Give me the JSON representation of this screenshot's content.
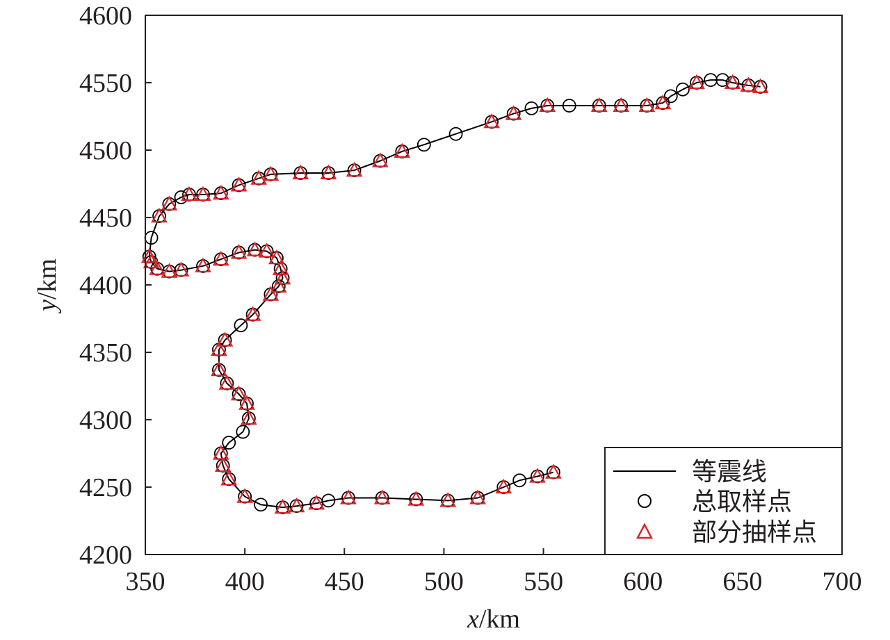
{
  "chart_data": {
    "type": "line",
    "xlabel_var": "x",
    "xlabel_unit": "/km",
    "ylabel_var": "y",
    "ylabel_unit": "/km",
    "xlim": [
      350,
      700
    ],
    "ylim": [
      4200,
      4600
    ],
    "xticks": [
      350,
      400,
      450,
      500,
      550,
      600,
      650,
      700
    ],
    "yticks": [
      4200,
      4250,
      4300,
      4350,
      4400,
      4450,
      4500,
      4550,
      4600
    ],
    "legend_position": "bottom-right",
    "series": [
      {
        "name": "等震线",
        "style": "line",
        "color": "#000000",
        "points": [
          [
            555,
            4261
          ],
          [
            547,
            4258
          ],
          [
            538,
            4255
          ],
          [
            530,
            4250
          ],
          [
            517,
            4242
          ],
          [
            502,
            4240
          ],
          [
            486,
            4241
          ],
          [
            469,
            4242
          ],
          [
            452,
            4242
          ],
          [
            442,
            4240
          ],
          [
            436,
            4238
          ],
          [
            426,
            4236
          ],
          [
            419,
            4235
          ],
          [
            408,
            4237
          ],
          [
            400,
            4243
          ],
          [
            392,
            4256
          ],
          [
            389,
            4266
          ],
          [
            388,
            4275
          ],
          [
            392,
            4283
          ],
          [
            399,
            4291
          ],
          [
            402,
            4301
          ],
          [
            401,
            4312
          ],
          [
            397,
            4319
          ],
          [
            391,
            4327
          ],
          [
            387,
            4337
          ],
          [
            387,
            4352
          ],
          [
            390,
            4359
          ],
          [
            398,
            4370
          ],
          [
            404,
            4378
          ],
          [
            413,
            4393
          ],
          [
            417,
            4399
          ],
          [
            419,
            4405
          ],
          [
            418,
            4412
          ],
          [
            416,
            4420
          ],
          [
            411,
            4425
          ],
          [
            405,
            4426
          ],
          [
            397,
            4424
          ],
          [
            388,
            4419
          ],
          [
            379,
            4414
          ],
          [
            368,
            4411
          ],
          [
            362,
            4410
          ],
          [
            356,
            4412
          ],
          [
            353,
            4417
          ],
          [
            352,
            4421
          ],
          [
            353,
            4435
          ],
          [
            357,
            4451
          ],
          [
            362,
            4460
          ],
          [
            368,
            4465
          ],
          [
            372,
            4467
          ],
          [
            379,
            4467
          ],
          [
            388,
            4468
          ],
          [
            397,
            4474
          ],
          [
            407,
            4479
          ],
          [
            413,
            4482
          ],
          [
            428,
            4483
          ],
          [
            442,
            4483
          ],
          [
            455,
            4485
          ],
          [
            468,
            4492
          ],
          [
            479,
            4499
          ],
          [
            490,
            4504
          ],
          [
            506,
            4512
          ],
          [
            524,
            4521
          ],
          [
            535,
            4527
          ],
          [
            544,
            4531
          ],
          [
            552,
            4533
          ],
          [
            563,
            4533
          ],
          [
            578,
            4533
          ],
          [
            589,
            4533
          ],
          [
            602,
            4533
          ],
          [
            610,
            4535
          ],
          [
            614,
            4540
          ],
          [
            620,
            4545
          ],
          [
            627,
            4550
          ],
          [
            634,
            4552
          ],
          [
            640,
            4552
          ],
          [
            645,
            4550
          ],
          [
            653,
            4548
          ],
          [
            659,
            4547
          ]
        ]
      },
      {
        "name": "总取样点",
        "style": "circle",
        "color": "#000000",
        "points": [
          [
            555,
            4261
          ],
          [
            547,
            4258
          ],
          [
            538,
            4255
          ],
          [
            530,
            4250
          ],
          [
            517,
            4242
          ],
          [
            502,
            4240
          ],
          [
            486,
            4241
          ],
          [
            469,
            4242
          ],
          [
            452,
            4242
          ],
          [
            442,
            4240
          ],
          [
            436,
            4238
          ],
          [
            426,
            4236
          ],
          [
            419,
            4235
          ],
          [
            408,
            4237
          ],
          [
            400,
            4243
          ],
          [
            392,
            4256
          ],
          [
            389,
            4266
          ],
          [
            388,
            4275
          ],
          [
            392,
            4283
          ],
          [
            399,
            4291
          ],
          [
            402,
            4301
          ],
          [
            401,
            4312
          ],
          [
            397,
            4319
          ],
          [
            391,
            4327
          ],
          [
            387,
            4337
          ],
          [
            387,
            4352
          ],
          [
            390,
            4359
          ],
          [
            398,
            4370
          ],
          [
            404,
            4378
          ],
          [
            413,
            4393
          ],
          [
            417,
            4399
          ],
          [
            419,
            4405
          ],
          [
            418,
            4412
          ],
          [
            416,
            4420
          ],
          [
            411,
            4425
          ],
          [
            405,
            4426
          ],
          [
            397,
            4424
          ],
          [
            388,
            4419
          ],
          [
            379,
            4414
          ],
          [
            368,
            4411
          ],
          [
            362,
            4410
          ],
          [
            356,
            4412
          ],
          [
            353,
            4417
          ],
          [
            352,
            4421
          ],
          [
            353,
            4435
          ],
          [
            357,
            4451
          ],
          [
            362,
            4460
          ],
          [
            368,
            4465
          ],
          [
            372,
            4467
          ],
          [
            379,
            4467
          ],
          [
            388,
            4468
          ],
          [
            397,
            4474
          ],
          [
            407,
            4479
          ],
          [
            413,
            4482
          ],
          [
            428,
            4483
          ],
          [
            442,
            4483
          ],
          [
            455,
            4485
          ],
          [
            468,
            4492
          ],
          [
            479,
            4499
          ],
          [
            490,
            4504
          ],
          [
            506,
            4512
          ],
          [
            524,
            4521
          ],
          [
            535,
            4527
          ],
          [
            544,
            4531
          ],
          [
            552,
            4533
          ],
          [
            563,
            4533
          ],
          [
            578,
            4533
          ],
          [
            589,
            4533
          ],
          [
            602,
            4533
          ],
          [
            610,
            4535
          ],
          [
            614,
            4540
          ],
          [
            620,
            4545
          ],
          [
            627,
            4550
          ],
          [
            634,
            4552
          ],
          [
            640,
            4552
          ],
          [
            645,
            4550
          ],
          [
            653,
            4548
          ],
          [
            659,
            4547
          ]
        ]
      },
      {
        "name": "部分抽样点",
        "style": "triangle",
        "color": "#d7262b",
        "points": [
          [
            555,
            4261
          ],
          [
            547,
            4258
          ],
          [
            530,
            4250
          ],
          [
            517,
            4242
          ],
          [
            502,
            4240
          ],
          [
            486,
            4241
          ],
          [
            469,
            4242
          ],
          [
            452,
            4242
          ],
          [
            436,
            4238
          ],
          [
            426,
            4236
          ],
          [
            419,
            4235
          ],
          [
            400,
            4243
          ],
          [
            392,
            4256
          ],
          [
            389,
            4266
          ],
          [
            388,
            4275
          ],
          [
            402,
            4301
          ],
          [
            401,
            4312
          ],
          [
            397,
            4319
          ],
          [
            391,
            4327
          ],
          [
            387,
            4337
          ],
          [
            387,
            4352
          ],
          [
            390,
            4359
          ],
          [
            404,
            4378
          ],
          [
            413,
            4393
          ],
          [
            417,
            4399
          ],
          [
            419,
            4405
          ],
          [
            418,
            4412
          ],
          [
            416,
            4420
          ],
          [
            411,
            4425
          ],
          [
            405,
            4426
          ],
          [
            397,
            4424
          ],
          [
            388,
            4419
          ],
          [
            379,
            4414
          ],
          [
            368,
            4411
          ],
          [
            362,
            4410
          ],
          [
            356,
            4412
          ],
          [
            353,
            4417
          ],
          [
            352,
            4421
          ],
          [
            357,
            4451
          ],
          [
            362,
            4460
          ],
          [
            372,
            4467
          ],
          [
            379,
            4467
          ],
          [
            388,
            4468
          ],
          [
            397,
            4474
          ],
          [
            407,
            4479
          ],
          [
            413,
            4482
          ],
          [
            428,
            4483
          ],
          [
            442,
            4483
          ],
          [
            455,
            4485
          ],
          [
            468,
            4492
          ],
          [
            479,
            4499
          ],
          [
            524,
            4521
          ],
          [
            535,
            4527
          ],
          [
            552,
            4533
          ],
          [
            578,
            4533
          ],
          [
            589,
            4533
          ],
          [
            602,
            4533
          ],
          [
            610,
            4535
          ],
          [
            627,
            4550
          ],
          [
            645,
            4550
          ],
          [
            653,
            4548
          ],
          [
            659,
            4547
          ]
        ]
      }
    ]
  }
}
